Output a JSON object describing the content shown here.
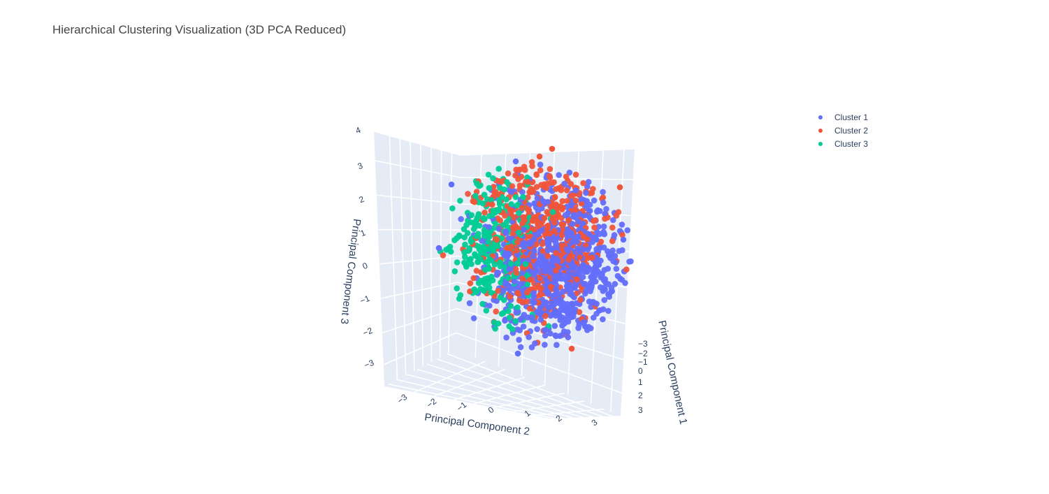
{
  "chart_data": {
    "type": "scatter3d",
    "title": "Hierarchical Clustering Visualization (3D PCA Reduced)",
    "x_axis": {
      "label": "Principal Component 1",
      "ticks": [
        "−3",
        "−2",
        "−1",
        "0",
        "1",
        "2",
        "3"
      ]
    },
    "y_axis": {
      "label": "Principal Component 2",
      "ticks": [
        "−3",
        "−2",
        "−1",
        "0",
        "1",
        "2",
        "3"
      ]
    },
    "z_axis": {
      "label": "Principal Component 3",
      "ticks": [
        "−3",
        "−2",
        "−1",
        "0",
        "1",
        "2",
        "3",
        "4"
      ]
    },
    "series": [
      {
        "name": "Cluster 1",
        "color": "#636efa"
      },
      {
        "name": "Cluster 2",
        "color": "#ef553b"
      },
      {
        "name": "Cluster 3",
        "color": "#00cc96"
      }
    ],
    "legend_position": "top-right",
    "grid": true
  }
}
